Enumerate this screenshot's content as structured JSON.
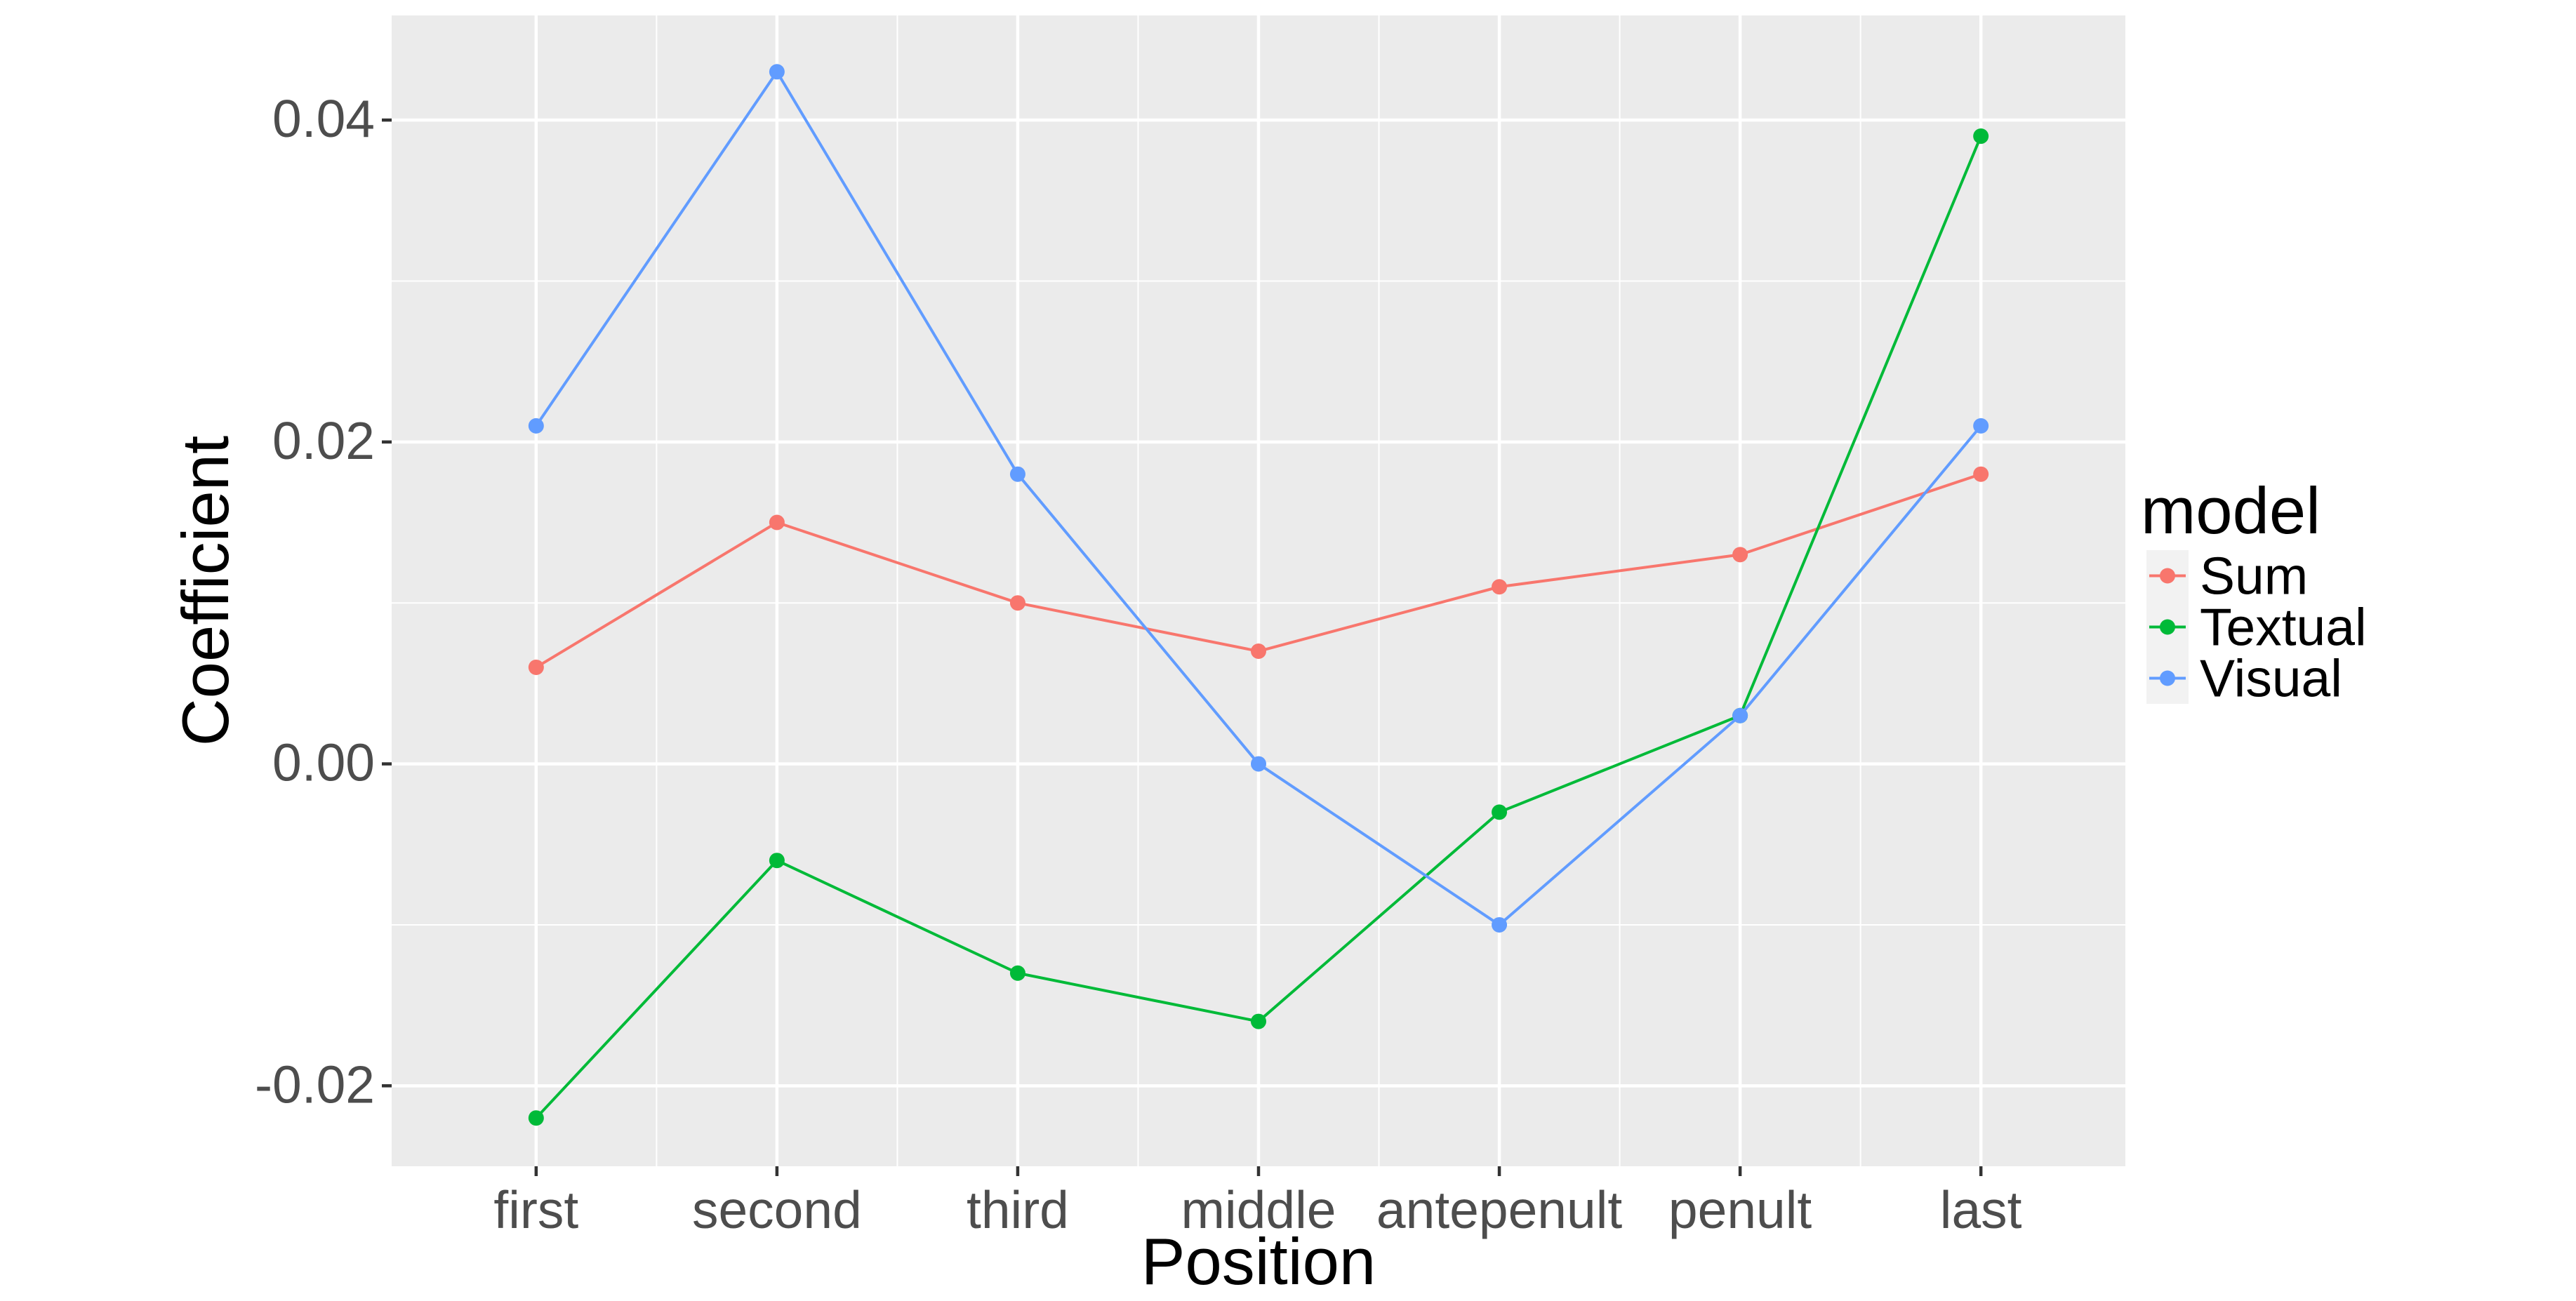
{
  "chart_data": {
    "type": "line",
    "xlabel": "Position",
    "ylabel": "Coefficient",
    "categories": [
      "first",
      "second",
      "third",
      "middle",
      "antepenult",
      "penult",
      "last"
    ],
    "ylim": [
      -0.025,
      0.0465
    ],
    "yticks": [
      -0.02,
      0.0,
      0.02,
      0.04
    ],
    "ytick_labels": [
      "-0.02",
      "0.00",
      "0.02",
      "0.04"
    ],
    "grid": true,
    "legend": {
      "title": "model",
      "position": "right"
    },
    "series": [
      {
        "name": "Sum",
        "color": "#F8766D",
        "values": [
          0.006,
          0.015,
          0.01,
          0.007,
          0.011,
          0.013,
          0.018
        ]
      },
      {
        "name": "Textual",
        "color": "#00BA38",
        "values": [
          -0.022,
          -0.006,
          -0.013,
          -0.016,
          -0.003,
          0.003,
          0.039
        ]
      },
      {
        "name": "Visual",
        "color": "#619CFF",
        "values": [
          0.021,
          0.043,
          0.018,
          0.0,
          -0.01,
          0.003,
          0.021
        ]
      }
    ]
  }
}
